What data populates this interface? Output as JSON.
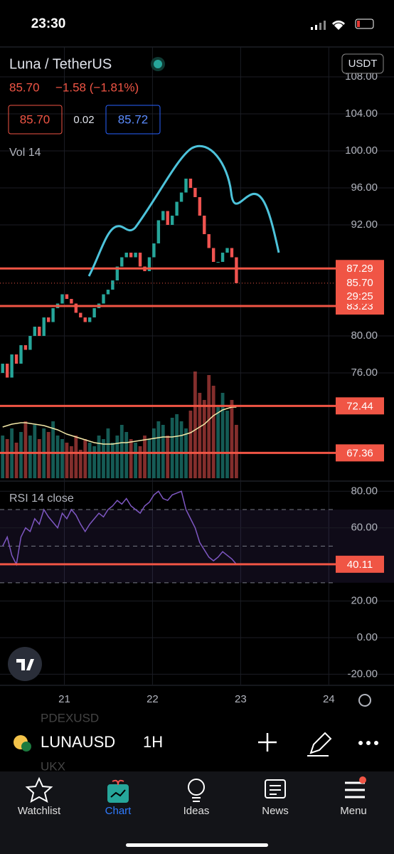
{
  "status_bar": {
    "time": "23:30"
  },
  "header": {
    "symbol_title": "Luna / TetherUS",
    "last_price": "85.70",
    "change": "−1.58 (−1.81%)",
    "bid": "85.70",
    "spread": "0.02",
    "ask": "85.72",
    "currency": "USDT"
  },
  "chart_data": {
    "type": "candlestick",
    "volume_title": "Vol 14",
    "x": [
      20.3,
      20.352,
      20.404,
      20.456,
      20.508,
      20.56,
      20.612,
      20.664,
      20.716,
      20.768,
      20.82,
      20.872,
      20.924,
      20.976,
      21.028,
      21.08,
      21.132,
      21.184,
      21.236,
      21.288,
      21.34,
      21.392,
      21.444,
      21.496,
      21.548,
      21.6,
      21.652,
      21.704,
      21.756,
      21.808,
      21.86,
      21.912,
      21.964,
      22.016,
      22.068,
      22.12,
      22.172,
      22.224,
      22.276,
      22.328,
      22.38,
      22.432,
      22.484,
      22.536,
      22.588,
      22.64,
      22.692,
      22.744,
      22.796,
      22.848,
      22.9,
      22.952
    ],
    "opens": [
      76,
      77,
      75.5,
      78,
      77,
      79,
      78.5,
      80,
      81,
      80,
      82,
      81.5,
      83,
      83.5,
      84.5,
      84,
      83.5,
      82.5,
      82,
      81.5,
      82,
      83,
      83.5,
      84.5,
      85,
      86,
      87.5,
      88.5,
      89,
      88.5,
      89,
      87.5,
      87,
      88.5,
      90,
      92.5,
      93.5,
      92,
      93,
      94.5,
      95.5,
      97,
      96,
      95,
      93,
      91,
      89.5,
      88,
      88,
      89,
      89.5,
      88.5
    ],
    "closes": [
      77,
      75.5,
      78,
      77,
      79,
      78.5,
      80,
      81,
      80,
      82,
      81.5,
      83,
      83.5,
      84.5,
      84,
      83.5,
      82.5,
      82,
      81.5,
      82,
      83,
      83.5,
      84.5,
      85,
      86,
      87.5,
      88.5,
      89,
      88.5,
      89,
      87.5,
      87,
      88.5,
      90,
      92.5,
      93.5,
      92,
      93,
      94.5,
      95.5,
      97,
      96,
      95,
      93,
      91,
      89.5,
      88,
      88,
      89,
      89.5,
      88.5,
      85.7
    ],
    "up_color": "#26a69a",
    "down_color": "#ef5350",
    "xlim": [
      20.27,
      24.74
    ],
    "xticks": [
      21,
      22,
      23,
      24
    ],
    "ylim": [
      64.62,
      111.23
    ],
    "yticks": [
      {
        "value": 108,
        "label": "108.00"
      },
      {
        "value": 104,
        "label": "104.00"
      },
      {
        "value": 100,
        "label": "100.00"
      },
      {
        "value": 96,
        "label": "96.00"
      },
      {
        "value": 92,
        "label": "92.00"
      },
      {
        "value": 80,
        "label": "80.00"
      },
      {
        "value": 76,
        "label": "76.00"
      }
    ],
    "levels": [
      {
        "value": 87.29,
        "label": "87.29"
      },
      {
        "value": 83.23,
        "label": "83.23"
      },
      {
        "value": 72.44,
        "label": "72.44"
      },
      {
        "value": 67.36,
        "label": "67.36"
      }
    ],
    "last": {
      "value": 85.7,
      "label": "85.70",
      "countdown": "29:25"
    },
    "level_color": "#f05545",
    "volume": [
      60,
      55,
      70,
      50,
      65,
      80,
      60,
      75,
      55,
      70,
      65,
      80,
      60,
      55,
      50,
      45,
      60,
      40,
      55,
      50,
      45,
      60,
      55,
      70,
      50,
      60,
      75,
      65,
      55,
      50,
      45,
      60,
      55,
      70,
      80,
      75,
      60,
      85,
      90,
      80,
      70,
      95,
      150,
      120,
      110,
      145,
      130,
      100,
      120,
      95,
      110,
      75
    ],
    "volume_ma": [
      72,
      74,
      76,
      77,
      78,
      78,
      77,
      76,
      75,
      74,
      72,
      70,
      68,
      65,
      62,
      60,
      58,
      56,
      54,
      52,
      50,
      49,
      48,
      48,
      48,
      49,
      50,
      50,
      51,
      52,
      53,
      54,
      55,
      56,
      57,
      58,
      58,
      58,
      59,
      60,
      62,
      64,
      68,
      72,
      76,
      82,
      88,
      92,
      96,
      98,
      100,
      100
    ],
    "volume_ylim": [
      0,
      160
    ],
    "volume_ma_color": "#f3e9a8",
    "rsi": {
      "title": "RSI 14 close",
      "color": "#7e57c2",
      "values": [
        50,
        55,
        45,
        40,
        55,
        60,
        58,
        65,
        62,
        70,
        66,
        63,
        60,
        68,
        65,
        70,
        67,
        62,
        58,
        62,
        65,
        68,
        66,
        70,
        72,
        75,
        73,
        76,
        72,
        70,
        68,
        72,
        74,
        78,
        80,
        76,
        75,
        78,
        79,
        80,
        70,
        65,
        60,
        52,
        48,
        44,
        42,
        44,
        47,
        45,
        43,
        40.11
      ],
      "ylim": [
        -24.9,
        84
      ],
      "bands": [
        30,
        50,
        70
      ],
      "yticks": [
        {
          "value": 80,
          "label": "80.00"
        },
        {
          "value": 60,
          "label": "60.00"
        },
        {
          "value": 20,
          "label": "20.00"
        },
        {
          "value": 0,
          "label": "0.00"
        },
        {
          "value": -20,
          "label": "-20.00"
        }
      ],
      "last": {
        "value": 40.11,
        "label": "40.11"
      }
    }
  },
  "toolbar": {
    "symbol": "LUNAUSD",
    "interval": "1H",
    "ghost_symbols": [
      "PDEXUSD",
      "UKX"
    ]
  },
  "nav": [
    "Watchlist",
    "Chart",
    "Ideas",
    "News",
    "Menu"
  ]
}
